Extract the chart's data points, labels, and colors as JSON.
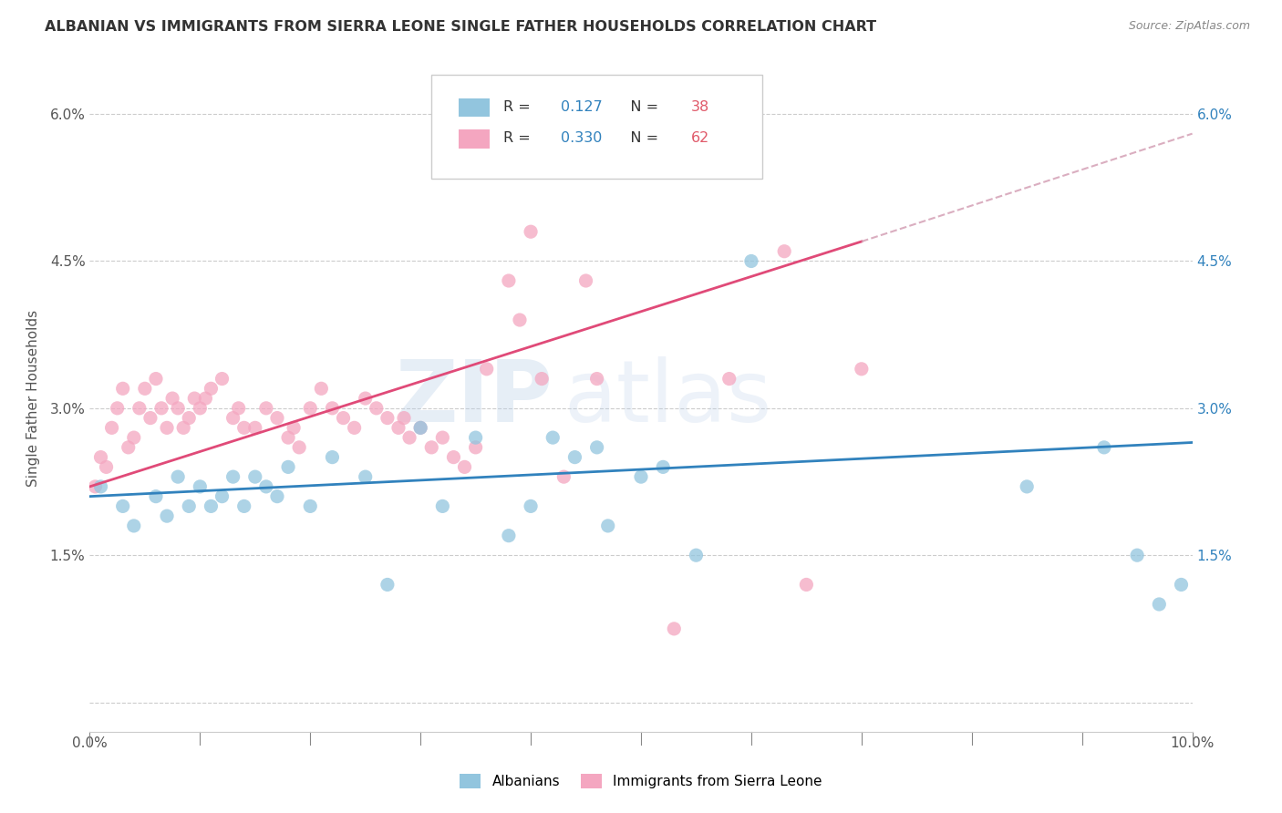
{
  "title": "ALBANIAN VS IMMIGRANTS FROM SIERRA LEONE SINGLE FATHER HOUSEHOLDS CORRELATION CHART",
  "source": "Source: ZipAtlas.com",
  "ylabel": "Single Father Households",
  "xlim": [
    0.0,
    10.0
  ],
  "ylim": [
    -0.3,
    6.5
  ],
  "yticks": [
    0.0,
    1.5,
    3.0,
    4.5,
    6.0
  ],
  "ytick_labels": [
    "",
    "1.5%",
    "3.0%",
    "4.5%",
    "6.0%"
  ],
  "xticks": [
    0.0,
    1.0,
    2.0,
    3.0,
    4.0,
    5.0,
    6.0,
    7.0,
    8.0,
    9.0,
    10.0
  ],
  "xtick_labels": [
    "0.0%",
    "",
    "",
    "",
    "",
    "",
    "",
    "",
    "",
    "",
    "10.0%"
  ],
  "color_blue": "#92c5de",
  "color_pink": "#f4a6c0",
  "color_blue_line": "#3182bd",
  "color_pink_line": "#e04a78",
  "color_pink_dash": "#d4a0b5",
  "watermark_zip": "ZIP",
  "watermark_atlas": "atlas",
  "albanians_x": [
    0.1,
    0.3,
    0.4,
    0.6,
    0.7,
    0.8,
    0.9,
    1.0,
    1.1,
    1.2,
    1.3,
    1.4,
    1.5,
    1.6,
    1.7,
    1.8,
    2.0,
    2.2,
    2.5,
    2.7,
    3.0,
    3.2,
    3.5,
    3.8,
    4.0,
    4.2,
    4.4,
    4.6,
    4.7,
    5.0,
    5.2,
    5.5,
    6.0,
    8.5,
    9.2,
    9.5,
    9.7,
    9.9
  ],
  "albanians_y": [
    2.2,
    2.0,
    1.8,
    2.1,
    1.9,
    2.3,
    2.0,
    2.2,
    2.0,
    2.1,
    2.3,
    2.0,
    2.3,
    2.2,
    2.1,
    2.4,
    2.0,
    2.5,
    2.3,
    1.2,
    2.8,
    2.0,
    2.7,
    1.7,
    2.0,
    2.7,
    2.5,
    2.6,
    1.8,
    2.3,
    2.4,
    1.5,
    4.5,
    2.2,
    2.6,
    1.5,
    1.0,
    1.2
  ],
  "sierra_leone_x": [
    0.05,
    0.1,
    0.15,
    0.2,
    0.25,
    0.3,
    0.35,
    0.4,
    0.45,
    0.5,
    0.55,
    0.6,
    0.65,
    0.7,
    0.75,
    0.8,
    0.85,
    0.9,
    0.95,
    1.0,
    1.05,
    1.1,
    1.2,
    1.3,
    1.35,
    1.4,
    1.5,
    1.6,
    1.7,
    1.8,
    1.85,
    1.9,
    2.0,
    2.1,
    2.2,
    2.3,
    2.4,
    2.5,
    2.6,
    2.7,
    2.8,
    2.85,
    2.9,
    3.0,
    3.1,
    3.2,
    3.3,
    3.4,
    3.5,
    3.6,
    3.8,
    3.9,
    4.0,
    4.1,
    4.3,
    4.5,
    4.6,
    5.3,
    5.8,
    6.3,
    6.5,
    7.0
  ],
  "sierra_leone_y": [
    2.2,
    2.5,
    2.4,
    2.8,
    3.0,
    3.2,
    2.6,
    2.7,
    3.0,
    3.2,
    2.9,
    3.3,
    3.0,
    2.8,
    3.1,
    3.0,
    2.8,
    2.9,
    3.1,
    3.0,
    3.1,
    3.2,
    3.3,
    2.9,
    3.0,
    2.8,
    2.8,
    3.0,
    2.9,
    2.7,
    2.8,
    2.6,
    3.0,
    3.2,
    3.0,
    2.9,
    2.8,
    3.1,
    3.0,
    2.9,
    2.8,
    2.9,
    2.7,
    2.8,
    2.6,
    2.7,
    2.5,
    2.4,
    2.6,
    3.4,
    4.3,
    3.9,
    4.8,
    3.3,
    2.3,
    4.3,
    3.3,
    0.75,
    3.3,
    4.6,
    1.2,
    3.4
  ],
  "reg_blue_x0": 0.0,
  "reg_blue_y0": 2.1,
  "reg_blue_x1": 10.0,
  "reg_blue_y1": 2.65,
  "reg_pink_x0": 0.0,
  "reg_pink_y0": 2.2,
  "reg_pink_x1": 7.0,
  "reg_pink_y1": 4.7,
  "reg_pink_dash_x0": 7.0,
  "reg_pink_dash_y0": 4.7,
  "reg_pink_dash_x1": 10.0,
  "reg_pink_dash_y1": 5.8
}
